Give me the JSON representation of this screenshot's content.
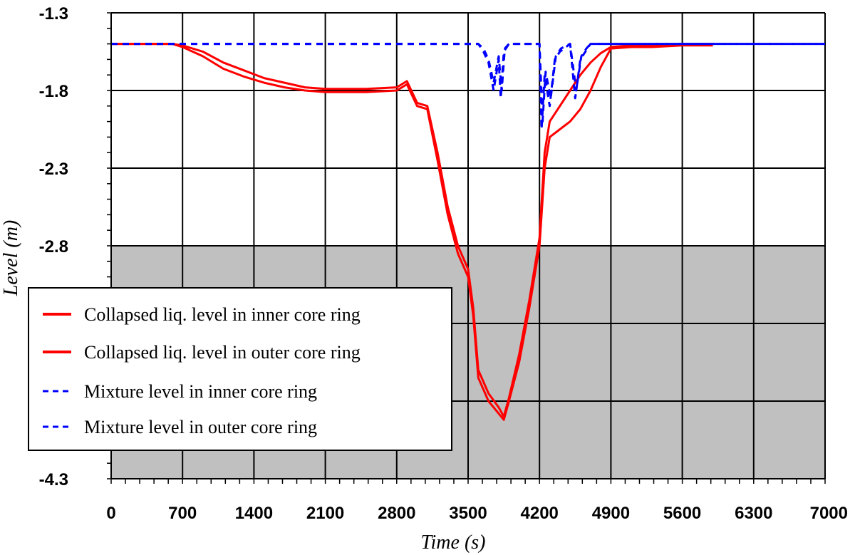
{
  "chart_data": {
    "type": "line",
    "xlabel": "Time (s)",
    "ylabel": "Level (m)",
    "xlim": [
      0,
      7000
    ],
    "ylim": [
      -4.3,
      -1.3
    ],
    "x_ticks": [
      0,
      700,
      1400,
      2100,
      2800,
      3500,
      4200,
      4900,
      5600,
      6300,
      7000
    ],
    "x_tick_labels": [
      "0",
      "700",
      "1400",
      "2100",
      "2800",
      "3500",
      "4200",
      "4900",
      "5600",
      "6300",
      "7000"
    ],
    "y_ticks": [
      -1.3,
      -1.8,
      -2.3,
      -2.8,
      -4.3
    ],
    "y_tick_labels": [
      "-1.3",
      "-1.8",
      "-2.3",
      "-2.8",
      "-4.3"
    ],
    "y_gridlines": [
      -1.3,
      -1.8,
      -2.3,
      -2.8,
      -3.3,
      -3.8,
      -4.3
    ],
    "grid": true,
    "shaded_region": {
      "y_from": -4.3,
      "y_to": -2.8,
      "color": "#c0c0c0"
    },
    "legend_position": "lower-left",
    "colors": {
      "collapsed": "#ff0000",
      "mixture": "#0000ff",
      "grid": "#000000",
      "shade": "#c0c0c0"
    },
    "series": [
      {
        "name": "Collapsed liq. level in inner core ring",
        "style": "solid",
        "x": [
          0,
          600,
          700,
          900,
          1100,
          1300,
          1500,
          1700,
          1900,
          2100,
          2500,
          2800,
          2900,
          3000,
          3100,
          3200,
          3300,
          3400,
          3500,
          3550,
          3600,
          3700,
          3800,
          3850,
          3900,
          4000,
          4100,
          4200,
          4250,
          4300,
          4400,
          4500,
          4600,
          4700,
          4800,
          4900,
          5100,
          5300,
          5600,
          5900
        ],
        "y": [
          -1.5,
          -1.5,
          -1.52,
          -1.58,
          -1.66,
          -1.71,
          -1.75,
          -1.78,
          -1.8,
          -1.81,
          -1.81,
          -1.8,
          -1.76,
          -1.9,
          -1.92,
          -2.25,
          -2.6,
          -2.85,
          -3.0,
          -3.25,
          -3.65,
          -3.8,
          -3.88,
          -3.92,
          -3.8,
          -3.55,
          -3.2,
          -2.8,
          -2.3,
          -2.1,
          -2.05,
          -2.0,
          -1.92,
          -1.8,
          -1.65,
          -1.53,
          -1.52,
          -1.52,
          -1.51,
          -1.51
        ]
      },
      {
        "name": "Collapsed liq. level in outer core ring",
        "style": "solid",
        "x": [
          0,
          600,
          700,
          900,
          1100,
          1300,
          1500,
          1700,
          1900,
          2100,
          2500,
          2800,
          2900,
          3000,
          3100,
          3200,
          3300,
          3400,
          3500,
          3550,
          3600,
          3700,
          3800,
          3850,
          3900,
          4000,
          4100,
          4200,
          4250,
          4300,
          4400,
          4500,
          4600,
          4700,
          4800,
          4900,
          5100,
          5300,
          5600,
          5900
        ],
        "y": [
          -1.5,
          -1.5,
          -1.51,
          -1.55,
          -1.62,
          -1.67,
          -1.72,
          -1.75,
          -1.78,
          -1.79,
          -1.79,
          -1.78,
          -1.74,
          -1.88,
          -1.9,
          -2.2,
          -2.55,
          -2.8,
          -2.95,
          -3.2,
          -3.6,
          -3.75,
          -3.84,
          -3.9,
          -3.78,
          -3.5,
          -3.15,
          -2.75,
          -2.2,
          -2.0,
          -1.9,
          -1.8,
          -1.7,
          -1.62,
          -1.56,
          -1.52,
          -1.51,
          -1.51,
          -1.5,
          -1.5
        ]
      },
      {
        "name": "Mixture level in inner core ring",
        "style": "dashed",
        "x": [
          0,
          3600,
          3650,
          3700,
          3750,
          3800,
          3820,
          3850,
          3900,
          4200,
          4220,
          4250,
          4300,
          4350,
          4400,
          4500,
          4550,
          4600,
          4650,
          4700,
          7000
        ],
        "y": [
          -1.5,
          -1.5,
          -1.55,
          -1.62,
          -1.8,
          -1.6,
          -1.85,
          -1.55,
          -1.5,
          -1.5,
          -2.05,
          -1.7,
          -1.9,
          -1.6,
          -1.55,
          -1.5,
          -1.85,
          -1.6,
          -1.55,
          -1.5,
          -1.5
        ]
      },
      {
        "name": "Mixture level in outer core ring",
        "style": "dashed",
        "x": [
          0,
          3600,
          3650,
          3700,
          3750,
          3800,
          3830,
          3860,
          3900,
          4200,
          4230,
          4260,
          4310,
          4360,
          4410,
          4500,
          4560,
          4610,
          4660,
          4700,
          7000
        ],
        "y": [
          -1.5,
          -1.5,
          -1.53,
          -1.6,
          -1.75,
          -1.58,
          -1.8,
          -1.53,
          -1.5,
          -1.5,
          -2.0,
          -1.68,
          -1.85,
          -1.58,
          -1.53,
          -1.5,
          -1.8,
          -1.58,
          -1.53,
          -1.5,
          -1.5
        ]
      }
    ]
  }
}
